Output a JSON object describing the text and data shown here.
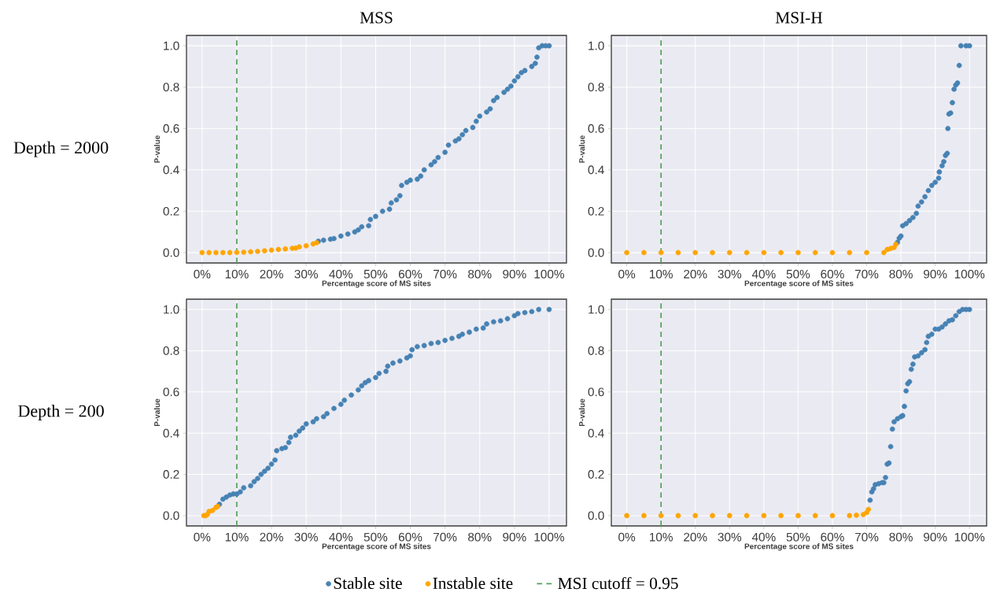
{
  "chart_data": [
    {
      "type": "scatter",
      "title": "MSS",
      "xlabel": "Percentage score of MS sites",
      "ylabel": "P-value",
      "annotations": [
        "Depth =  2000"
      ],
      "grid": true,
      "xlim": [
        -4.5,
        105
      ],
      "ylim": [
        -0.05,
        1.05
      ],
      "xticks": [
        {
          "value": 0,
          "label": "0%"
        },
        {
          "value": 10,
          "label": "10%"
        },
        {
          "value": 20,
          "label": "20%"
        },
        {
          "value": 30,
          "label": "30%"
        },
        {
          "value": 40,
          "label": "40%"
        },
        {
          "value": 50,
          "label": "50%"
        },
        {
          "value": 60,
          "label": "60%"
        },
        {
          "value": 70,
          "label": "70%"
        },
        {
          "value": 80,
          "label": "80%"
        },
        {
          "value": 90,
          "label": "90%"
        },
        {
          "value": 100,
          "label": "100%"
        }
      ],
      "yticks": [
        {
          "value": 0,
          "label": "0.0"
        },
        {
          "value": 0.2,
          "label": "0.2"
        },
        {
          "value": 0.4,
          "label": "0.4"
        },
        {
          "value": 0.6,
          "label": "0.6"
        },
        {
          "value": 0.8,
          "label": "0.8"
        },
        {
          "value": 1,
          "label": "1.0"
        }
      ],
      "ref_lines": [
        {
          "axis": "x",
          "value": 10,
          "color": "#55a05a",
          "line_style": "dashed"
        }
      ],
      "series": [
        {
          "color": "#4682b4",
          "x": [
            33.5,
            35,
            37,
            38,
            40,
            42,
            44,
            45,
            46,
            48,
            48.5,
            50,
            52,
            54,
            54.5,
            56,
            57,
            57.5,
            59,
            60,
            62,
            63,
            64,
            66,
            67,
            68,
            70,
            71,
            73,
            74,
            75,
            76,
            78,
            79,
            80,
            82,
            83,
            84,
            85,
            87,
            88,
            89,
            90,
            91,
            92,
            93,
            95,
            96,
            96.5,
            97,
            98,
            99,
            100
          ],
          "values": [
            0.055,
            0.06,
            0.065,
            0.068,
            0.08,
            0.09,
            0.1,
            0.11,
            0.125,
            0.13,
            0.16,
            0.175,
            0.2,
            0.21,
            0.24,
            0.255,
            0.275,
            0.325,
            0.34,
            0.35,
            0.355,
            0.37,
            0.4,
            0.425,
            0.44,
            0.46,
            0.485,
            0.52,
            0.54,
            0.55,
            0.57,
            0.59,
            0.605,
            0.635,
            0.66,
            0.68,
            0.695,
            0.735,
            0.75,
            0.775,
            0.79,
            0.805,
            0.83,
            0.85,
            0.87,
            0.88,
            0.9,
            0.915,
            0.945,
            0.99,
            1.0,
            1.0,
            1.0
          ]
        },
        {
          "color": "#ffa500",
          "x": [
            0,
            2,
            4,
            6,
            8,
            10,
            12,
            14,
            16,
            18,
            20,
            22,
            24,
            26,
            27,
            28,
            30,
            32,
            33
          ],
          "values": [
            0,
            0,
            0,
            0,
            0,
            0.001,
            0.002,
            0.004,
            0.006,
            0.009,
            0.012,
            0.015,
            0.018,
            0.021,
            0.022,
            0.028,
            0.033,
            0.042,
            0.048
          ]
        }
      ]
    },
    {
      "type": "scatter",
      "title": "MSI-H",
      "xlabel": "Percentage score of MS sites",
      "ylabel": "P-value",
      "grid": true,
      "xlim": [
        -4.5,
        105
      ],
      "ylim": [
        -0.05,
        1.05
      ],
      "xticks": [
        {
          "value": 0,
          "label": "0%"
        },
        {
          "value": 10,
          "label": "10%"
        },
        {
          "value": 20,
          "label": "20%"
        },
        {
          "value": 30,
          "label": "30%"
        },
        {
          "value": 40,
          "label": "40%"
        },
        {
          "value": 50,
          "label": "50%"
        },
        {
          "value": 60,
          "label": "60%"
        },
        {
          "value": 70,
          "label": "70%"
        },
        {
          "value": 80,
          "label": "80%"
        },
        {
          "value": 90,
          "label": "90%"
        },
        {
          "value": 100,
          "label": "100%"
        }
      ],
      "yticks": [
        {
          "value": 0,
          "label": "0.0"
        },
        {
          "value": 0.2,
          "label": "0.2"
        },
        {
          "value": 0.4,
          "label": "0.4"
        },
        {
          "value": 0.6,
          "label": "0.6"
        },
        {
          "value": 0.8,
          "label": "0.8"
        },
        {
          "value": 1,
          "label": "1.0"
        }
      ],
      "ref_lines": [
        {
          "axis": "x",
          "value": 10,
          "color": "#55a05a",
          "line_style": "dashed"
        }
      ],
      "series": [
        {
          "color": "#4682b4",
          "x": [
            79,
            79.5,
            80,
            80.5,
            81.5,
            82.5,
            83.5,
            84.5,
            85,
            86,
            87,
            88,
            89,
            90,
            91,
            91.2,
            92,
            92.5,
            93,
            93.5,
            93.7,
            94,
            94.5,
            95,
            95.5,
            96,
            96.5,
            97,
            97.5,
            99,
            100
          ],
          "values": [
            0.05,
            0.07,
            0.08,
            0.13,
            0.14,
            0.155,
            0.17,
            0.19,
            0.225,
            0.245,
            0.27,
            0.3,
            0.325,
            0.34,
            0.36,
            0.39,
            0.42,
            0.44,
            0.47,
            0.48,
            0.6,
            0.67,
            0.675,
            0.725,
            0.79,
            0.81,
            0.82,
            0.905,
            1.0,
            1.0,
            1.0
          ]
        },
        {
          "color": "#ffa500",
          "x": [
            0,
            5,
            10,
            15,
            20,
            25,
            30,
            35,
            40,
            45,
            50,
            55,
            60,
            65,
            70,
            75,
            76,
            77,
            78,
            78.5
          ],
          "values": [
            0,
            0,
            0,
            0,
            0,
            0,
            0,
            0,
            0,
            0,
            0,
            0,
            0,
            0,
            0,
            0,
            0.015,
            0.02,
            0.025,
            0.04
          ]
        }
      ]
    },
    {
      "type": "scatter",
      "xlabel": "Percentage score of MS sites",
      "ylabel": "P-value",
      "annotations": [
        "Depth =  200",
        "MSI cutoff = 0.95"
      ],
      "grid": true,
      "legend": "bottom",
      "xlim": [
        -4.5,
        105
      ],
      "ylim": [
        -0.05,
        1.05
      ],
      "xticks": [
        {
          "value": 0,
          "label": "0%"
        },
        {
          "value": 10,
          "label": "10%"
        },
        {
          "value": 20,
          "label": "20%"
        },
        {
          "value": 30,
          "label": "30%"
        },
        {
          "value": 40,
          "label": "40%"
        },
        {
          "value": 50,
          "label": "50%"
        },
        {
          "value": 60,
          "label": "60%"
        },
        {
          "value": 70,
          "label": "70%"
        },
        {
          "value": 80,
          "label": "80%"
        },
        {
          "value": 90,
          "label": "90%"
        },
        {
          "value": 100,
          "label": "100%"
        }
      ],
      "yticks": [
        {
          "value": 0,
          "label": "0.0"
        },
        {
          "value": 0.2,
          "label": "0.2"
        },
        {
          "value": 0.4,
          "label": "0.4"
        },
        {
          "value": 0.6,
          "label": "0.6"
        },
        {
          "value": 0.8,
          "label": "0.8"
        },
        {
          "value": 1,
          "label": "1.0"
        }
      ],
      "ref_lines": [
        {
          "axis": "x",
          "value": 10,
          "color": "#55a05a",
          "line_style": "dashed"
        }
      ],
      "series": [
        {
          "name": "Stable site",
          "color": "#4682b4",
          "x": [
            5,
            6,
            7,
            8,
            9,
            10,
            11,
            12,
            14,
            15,
            16,
            17,
            18,
            19,
            20,
            21,
            21.5,
            23,
            24,
            25,
            25.5,
            27,
            28,
            29,
            30,
            32,
            33,
            35,
            36,
            38,
            40,
            41,
            43,
            45,
            46,
            47,
            48,
            50,
            51,
            53,
            53.5,
            55,
            57,
            59,
            60,
            60.5,
            62,
            64,
            66,
            68,
            70,
            72,
            74,
            75,
            77,
            79,
            81,
            82,
            84,
            86,
            88,
            90,
            91,
            93,
            95,
            97,
            100
          ],
          "values": [
            0.055,
            0.08,
            0.09,
            0.1,
            0.105,
            0.105,
            0.115,
            0.135,
            0.145,
            0.165,
            0.18,
            0.2,
            0.215,
            0.23,
            0.25,
            0.27,
            0.315,
            0.325,
            0.33,
            0.355,
            0.38,
            0.39,
            0.41,
            0.425,
            0.445,
            0.455,
            0.47,
            0.48,
            0.495,
            0.52,
            0.54,
            0.56,
            0.585,
            0.61,
            0.63,
            0.645,
            0.655,
            0.67,
            0.69,
            0.7,
            0.725,
            0.74,
            0.75,
            0.765,
            0.775,
            0.805,
            0.82,
            0.825,
            0.835,
            0.84,
            0.85,
            0.86,
            0.87,
            0.88,
            0.89,
            0.905,
            0.91,
            0.93,
            0.94,
            0.945,
            0.955,
            0.97,
            0.98,
            0.985,
            0.99,
            1.0,
            1.0
          ]
        },
        {
          "name": "Instable site",
          "color": "#ffa500",
          "x": [
            0.5,
            1,
            1.5,
            2,
            3,
            4,
            4.5
          ],
          "values": [
            0,
            0,
            0.005,
            0.02,
            0.025,
            0.04,
            0.045
          ]
        }
      ]
    },
    {
      "type": "scatter",
      "xlabel": "Percentage score of MS sites",
      "ylabel": "P-value",
      "grid": true,
      "xlim": [
        -4.5,
        105
      ],
      "ylim": [
        -0.05,
        1.05
      ],
      "xticks": [
        {
          "value": 0,
          "label": "0%"
        },
        {
          "value": 10,
          "label": "10%"
        },
        {
          "value": 20,
          "label": "20%"
        },
        {
          "value": 30,
          "label": "30%"
        },
        {
          "value": 40,
          "label": "40%"
        },
        {
          "value": 50,
          "label": "50%"
        },
        {
          "value": 60,
          "label": "60%"
        },
        {
          "value": 70,
          "label": "70%"
        },
        {
          "value": 80,
          "label": "80%"
        },
        {
          "value": 90,
          "label": "90%"
        },
        {
          "value": 100,
          "label": "100%"
        }
      ],
      "yticks": [
        {
          "value": 0,
          "label": "0.0"
        },
        {
          "value": 0.2,
          "label": "0.2"
        },
        {
          "value": 0.4,
          "label": "0.4"
        },
        {
          "value": 0.6,
          "label": "0.6"
        },
        {
          "value": 0.8,
          "label": "0.8"
        },
        {
          "value": 1,
          "label": "1.0"
        }
      ],
      "ref_lines": [
        {
          "axis": "x",
          "value": 10,
          "color": "#55a05a",
          "line_style": "dashed"
        }
      ],
      "series": [
        {
          "color": "#4682b4",
          "x": [
            71,
            71.5,
            72,
            72.5,
            73.5,
            74.5,
            75,
            75.5,
            76,
            76.5,
            77,
            77.5,
            78,
            79,
            80,
            80.5,
            81,
            81.5,
            82,
            82.5,
            83,
            83.5,
            84,
            85,
            86,
            87,
            87.5,
            88,
            89,
            90,
            91,
            92,
            93,
            94,
            95,
            96,
            97,
            98,
            99,
            100
          ],
          "values": [
            0.075,
            0.115,
            0.13,
            0.15,
            0.155,
            0.16,
            0.16,
            0.185,
            0.25,
            0.255,
            0.335,
            0.42,
            0.455,
            0.47,
            0.48,
            0.485,
            0.53,
            0.605,
            0.64,
            0.65,
            0.71,
            0.735,
            0.77,
            0.775,
            0.79,
            0.805,
            0.84,
            0.87,
            0.88,
            0.905,
            0.905,
            0.915,
            0.93,
            0.945,
            0.95,
            0.97,
            0.99,
            1.0,
            1.0,
            1.0
          ]
        },
        {
          "color": "#ffa500",
          "x": [
            0,
            5,
            10,
            15,
            20,
            25,
            30,
            35,
            40,
            45,
            50,
            55,
            60,
            65,
            67,
            69,
            70,
            70.5
          ],
          "values": [
            0,
            0,
            0,
            0,
            0,
            0,
            0,
            0,
            0,
            0,
            0,
            0,
            0,
            0,
            0.002,
            0.005,
            0.015,
            0.03
          ]
        }
      ]
    }
  ]
}
